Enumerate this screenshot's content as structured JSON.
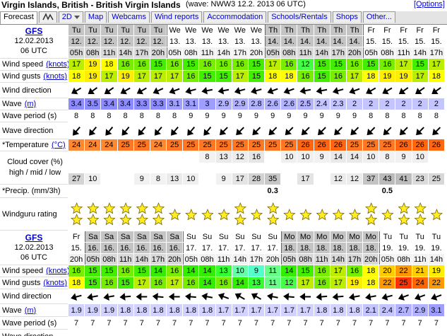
{
  "header": {
    "title": "Virgin Islands, British - British Virgin Islands",
    "wave_info": "(wave: NWW3 12.2. 2013 06 UTC)",
    "options": "[Options]"
  },
  "tabs": [
    "Forecast",
    "2D",
    "Map",
    "Webcams",
    "Wind reports",
    "Accommodation",
    "Schools/Rentals",
    "Shops",
    "Other..."
  ],
  "labels": {
    "wind_speed": "Wind speed",
    "knots": "(knots)",
    "wind_gusts": "Wind gusts",
    "wind_dir": "Wind direction",
    "wave": "Wave",
    "m": "(m)",
    "wave_period": "Wave period (s)",
    "wave_dir": "Wave direction",
    "temperature": "*Temperature",
    "celsius": "(°C)",
    "cloud": "Cloud cover (%)",
    "cloud_levels": "high / mid / low",
    "precip": "*Precip. (mm/3h)",
    "rating": "Windguru rating"
  },
  "wind_colors": [
    [
      0,
      "#ccffff"
    ],
    [
      9,
      "#55ffcc"
    ],
    [
      10,
      "#66ffaa"
    ],
    [
      11,
      "#66ff88"
    ],
    [
      12,
      "#44ff44"
    ],
    [
      13,
      "#33ff33"
    ],
    [
      14,
      "#33ee00"
    ],
    [
      15,
      "#44ee00"
    ],
    [
      16,
      "#77ee00"
    ],
    [
      17,
      "#bbee00"
    ],
    [
      18,
      "#ffff00"
    ],
    [
      19,
      "#ffee00"
    ],
    [
      20,
      "#ffcc00"
    ],
    [
      22,
      "#ff9900"
    ],
    [
      24,
      "#ff6600"
    ],
    [
      25,
      "#ff3300"
    ]
  ],
  "wave_colors": [
    [
      0,
      "#dcdcff"
    ],
    [
      1.7,
      "#d2d2ff"
    ],
    [
      2.0,
      "#c4c4ff"
    ],
    [
      2.5,
      "#b2b2ff"
    ],
    [
      3.0,
      "#9e9eff"
    ],
    [
      3.3,
      "#8c8cff"
    ]
  ],
  "temp_colors": [
    [
      24,
      "#ff8833"
    ],
    [
      25,
      "#ff7722"
    ],
    [
      26,
      "#ff6611"
    ]
  ],
  "tables": [
    {
      "model": "GFS",
      "date": "12.02.2013",
      "time": "06 UTC",
      "days": [
        "Tu",
        "Tu",
        "Tu",
        "Tu",
        "Tu",
        "Tu",
        "We",
        "We",
        "We",
        "We",
        "We",
        "We",
        "Th",
        "Th",
        "Th",
        "Th",
        "Th",
        "Th",
        "Fr",
        "Fr",
        "Fr",
        "Fr",
        "Fr"
      ],
      "dates": [
        "12.",
        "12.",
        "12.",
        "12.",
        "12.",
        "12.",
        "13.",
        "13.",
        "13.",
        "13.",
        "13.",
        "13.",
        "14.",
        "14.",
        "14.",
        "14.",
        "14.",
        "14.",
        "15.",
        "15.",
        "15.",
        "15.",
        "15."
      ],
      "hours": [
        "05h",
        "08h",
        "11h",
        "14h",
        "17h",
        "20h",
        "05h",
        "08h",
        "11h",
        "14h",
        "17h",
        "20h",
        "05h",
        "08h",
        "11h",
        "14h",
        "17h",
        "20h",
        "05h",
        "08h",
        "11h",
        "14h",
        "17h"
      ],
      "wind_speed": [
        17,
        19,
        18,
        16,
        16,
        15,
        16,
        15,
        16,
        16,
        16,
        15,
        17,
        16,
        12,
        15,
        15,
        16,
        15,
        16,
        17,
        15,
        17
      ],
      "wind_gusts": [
        18,
        19,
        17,
        19,
        17,
        17,
        17,
        16,
        15,
        15,
        17,
        15,
        18,
        18,
        16,
        15,
        16,
        17,
        18,
        19,
        19,
        17,
        18
      ],
      "wind_dir": [
        60,
        55,
        55,
        60,
        60,
        65,
        70,
        75,
        80,
        80,
        75,
        75,
        70,
        70,
        80,
        80,
        75,
        70,
        60,
        60,
        55,
        55,
        55
      ],
      "wave": [
        3.4,
        3.5,
        3.4,
        3.4,
        3.3,
        3.3,
        3.1,
        3.1,
        3,
        2.9,
        2.9,
        2.8,
        2.6,
        2.6,
        2.5,
        2.4,
        2.3,
        2,
        2,
        2,
        2,
        2,
        2
      ],
      "wave_period": [
        8,
        8,
        8,
        8,
        8,
        8,
        8,
        9,
        9,
        9,
        9,
        9,
        9,
        9,
        9,
        9,
        9,
        9,
        8,
        8,
        8,
        8,
        8
      ],
      "wave_dir": [
        40,
        40,
        40,
        40,
        40,
        40,
        40,
        40,
        40,
        45,
        45,
        45,
        45,
        45,
        45,
        45,
        45,
        45,
        45,
        45,
        45,
        45,
        45
      ],
      "temperature": [
        24,
        24,
        24,
        25,
        25,
        24,
        25,
        25,
        25,
        25,
        25,
        25,
        25,
        25,
        26,
        26,
        26,
        25,
        25,
        25,
        26,
        26,
        26
      ],
      "cloud_high": [
        null,
        null,
        null,
        null,
        null,
        null,
        null,
        null,
        8,
        13,
        12,
        16,
        null,
        10,
        10,
        9,
        14,
        14,
        10,
        8,
        9,
        10,
        null
      ],
      "cloud_mid": [
        null,
        null,
        null,
        null,
        null,
        null,
        null,
        null,
        null,
        null,
        null,
        null,
        null,
        null,
        null,
        null,
        null,
        null,
        null,
        null,
        null,
        null,
        null
      ],
      "cloud_low": [
        27,
        10,
        null,
        null,
        9,
        8,
        13,
        10,
        null,
        9,
        17,
        28,
        35,
        null,
        17,
        null,
        12,
        12,
        37,
        43,
        41,
        23,
        25
      ],
      "precip": [
        null,
        null,
        null,
        null,
        null,
        null,
        null,
        null,
        null,
        null,
        null,
        null,
        0.3,
        null,
        null,
        null,
        null,
        null,
        null,
        0.5,
        null,
        null,
        null
      ],
      "rating": [
        2,
        2,
        2,
        2,
        2,
        2,
        1,
        1,
        1,
        1,
        2,
        1,
        2,
        1,
        1,
        1,
        1,
        1,
        2,
        1,
        2,
        2,
        1
      ]
    },
    {
      "model": "GFS",
      "date": "12.02.2013",
      "time": "06 UTC",
      "days": [
        "Fr",
        "Sa",
        "Sa",
        "Sa",
        "Sa",
        "Sa",
        "Sa",
        "Su",
        "Su",
        "Su",
        "Su",
        "Su",
        "Su",
        "Mo",
        "Mo",
        "Mo",
        "Mo",
        "Mo",
        "Mo",
        "Tu",
        "Tu",
        "Tu",
        "Tu"
      ],
      "dates": [
        "15.",
        "16.",
        "16.",
        "16.",
        "16.",
        "16.",
        "16.",
        "17.",
        "17.",
        "17.",
        "17.",
        "17.",
        "17.",
        "18.",
        "18.",
        "18.",
        "18.",
        "18.",
        "18.",
        "19.",
        "19.",
        "19.",
        "19."
      ],
      "hours": [
        "20h",
        "05h",
        "08h",
        "11h",
        "14h",
        "17h",
        "20h",
        "05h",
        "08h",
        "11h",
        "14h",
        "17h",
        "20h",
        "05h",
        "08h",
        "11h",
        "14h",
        "17h",
        "20h",
        "05h",
        "08h",
        "11h",
        "14h"
      ],
      "wind_speed": [
        16,
        15,
        15,
        16,
        15,
        14,
        16,
        14,
        14,
        13,
        10,
        9,
        11,
        14,
        15,
        16,
        17,
        16,
        18,
        20,
        22,
        21,
        19
      ],
      "wind_gusts": [
        18,
        15,
        16,
        15,
        17,
        16,
        17,
        16,
        14,
        16,
        14,
        13,
        11,
        12,
        17,
        16,
        17,
        19,
        18,
        22,
        25,
        24,
        22
      ],
      "wind_dir": [
        75,
        80,
        80,
        85,
        90,
        95,
        90,
        95,
        100,
        110,
        120,
        120,
        100,
        95,
        90,
        85,
        85,
        80,
        80,
        75,
        70,
        70,
        70
      ],
      "wave": [
        1.9,
        1.9,
        1.9,
        1.8,
        1.8,
        1.8,
        1.8,
        1.8,
        1.8,
        1.7,
        1.7,
        1.7,
        1.7,
        1.7,
        1.7,
        1.8,
        1.8,
        1.8,
        2.1,
        2.4,
        2.7,
        2.9,
        3.1
      ],
      "wave_period": [
        7,
        7,
        7,
        7,
        7,
        7,
        7,
        7,
        7,
        7,
        7,
        7,
        7,
        7,
        7,
        7,
        7,
        7,
        7,
        7,
        7,
        7,
        7
      ]
    }
  ]
}
